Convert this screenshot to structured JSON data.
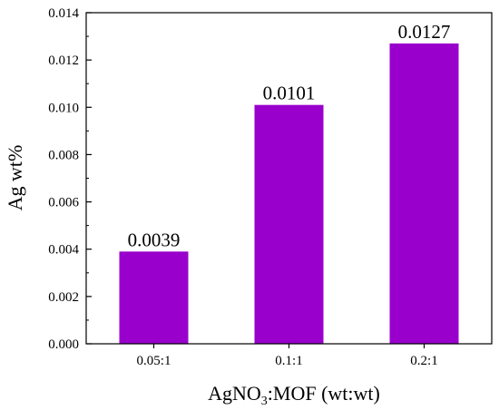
{
  "chart_data": {
    "type": "bar",
    "categories": [
      "0.05:1",
      "0.1:1",
      "0.2:1"
    ],
    "values": [
      0.0039,
      0.0101,
      0.0127
    ],
    "data_labels": [
      "0.0039",
      "0.0101",
      "0.0127"
    ],
    "ylabel": "Ag wt%",
    "xlabel": {
      "prefix": "AgNO",
      "subscript": "3",
      "suffix": ":MOF (wt:wt)"
    },
    "ylim": [
      0,
      0.014
    ],
    "yticks": [
      "0.000",
      "0.002",
      "0.004",
      "0.006",
      "0.008",
      "0.010",
      "0.012",
      "0.014"
    ],
    "grid": false,
    "bar_color": "#9900cc"
  }
}
